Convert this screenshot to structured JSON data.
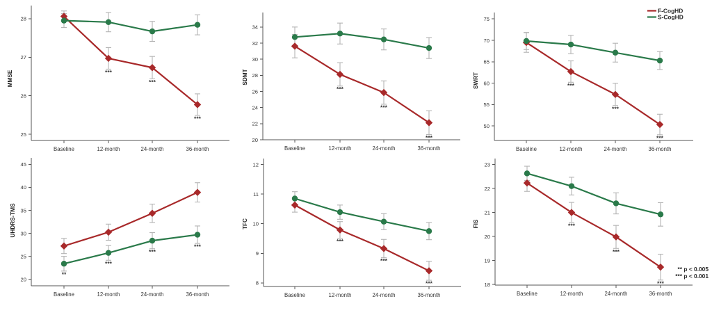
{
  "figure": {
    "colors": {
      "F-CogHD": "#a8292a",
      "S-CogHD": "#2a7a4a",
      "error_bar": "#b3b3b3",
      "axis": "#555555"
    },
    "legend": {
      "entries": [
        "F-CogHD",
        "S-CogHD"
      ],
      "placement": "top-right"
    },
    "footnotes": [
      "** p < 0.005",
      "*** p < 0.001"
    ]
  },
  "chart_data": [
    {
      "type": "line",
      "title": "",
      "xlabel": "",
      "ylabel": "MMSE",
      "categories": [
        "Baseline",
        "12-month",
        "24-month",
        "36-month"
      ],
      "yticks": [
        25,
        26,
        27,
        28
      ],
      "ylim": [
        24.84,
        28.34
      ],
      "grid": false,
      "series": [
        {
          "name": "F-CogHD",
          "color": "#a8292a",
          "values": [
            28.06,
            26.97,
            26.73,
            25.77
          ],
          "err": [
            0.14,
            0.28,
            0.29,
            0.28
          ]
        },
        {
          "name": "S-CogHD",
          "color": "#2a7a4a",
          "values": [
            27.95,
            27.91,
            27.67,
            27.84
          ],
          "err": [
            0.18,
            0.25,
            0.26,
            0.26
          ]
        }
      ],
      "significance": [
        {
          "series": "F-CogHD",
          "category": "12-month",
          "label": "***"
        },
        {
          "series": "F-CogHD",
          "category": "24-month",
          "label": "***"
        },
        {
          "series": "F-CogHD",
          "category": "36-month",
          "label": "***"
        }
      ]
    },
    {
      "type": "line",
      "title": "",
      "xlabel": "",
      "ylabel": "SDMT",
      "categories": [
        "Baseline",
        "12-month",
        "24-month",
        "36-month"
      ],
      "yticks": [
        20,
        22,
        24,
        26,
        28,
        30,
        32,
        34
      ],
      "ylim": [
        20,
        35.8
      ],
      "grid": false,
      "series": [
        {
          "name": "F-CogHD",
          "color": "#a8292a",
          "values": [
            31.62,
            28.12,
            25.86,
            22.12
          ],
          "err": [
            1.45,
            1.45,
            1.45,
            1.48
          ]
        },
        {
          "name": "S-CogHD",
          "color": "#2a7a4a",
          "values": [
            32.75,
            33.19,
            32.46,
            31.39
          ],
          "err": [
            1.25,
            1.3,
            1.3,
            1.3
          ]
        }
      ],
      "significance": [
        {
          "series": "F-CogHD",
          "category": "12-month",
          "label": "***"
        },
        {
          "series": "F-CogHD",
          "category": "24-month",
          "label": "***"
        },
        {
          "series": "F-CogHD",
          "category": "36-month",
          "label": "***"
        }
      ]
    },
    {
      "type": "line",
      "title": "",
      "xlabel": "",
      "ylabel": "SWRT",
      "categories": [
        "Baseline",
        "12-month",
        "24-month",
        "36-month"
      ],
      "yticks": [
        50,
        55,
        60,
        65,
        70,
        75
      ],
      "ylim": [
        46.6,
        76.5
      ],
      "grid": false,
      "legend": {
        "entries": [
          "F-CogHD",
          "S-CogHD"
        ],
        "placement": "top-right"
      },
      "series": [
        {
          "name": "F-CogHD",
          "color": "#a8292a",
          "values": [
            69.5,
            62.7,
            57.36,
            50.33
          ],
          "err": [
            2.3,
            2.5,
            2.6,
            2.4
          ]
        },
        {
          "name": "S-CogHD",
          "color": "#2a7a4a",
          "values": [
            69.84,
            69.02,
            67.12,
            65.27
          ],
          "err": [
            2.0,
            2.15,
            2.2,
            2.1
          ]
        }
      ],
      "significance": [
        {
          "series": "F-CogHD",
          "category": "12-month",
          "label": "***"
        },
        {
          "series": "F-CogHD",
          "category": "24-month",
          "label": "***"
        },
        {
          "series": "F-CogHD",
          "category": "36-month",
          "label": "***"
        }
      ]
    },
    {
      "type": "line",
      "title": "",
      "xlabel": "",
      "ylabel": "UHDRS-TMS",
      "categories": [
        "Baseline",
        "12-month",
        "24-month",
        "36-month"
      ],
      "yticks": [
        20,
        25,
        30,
        35,
        40,
        45
      ],
      "ylim": [
        18.6,
        46.4
      ],
      "grid": false,
      "series": [
        {
          "name": "F-CogHD",
          "color": "#a8292a",
          "values": [
            27.25,
            30.25,
            34.35,
            38.9
          ],
          "err": [
            1.65,
            1.75,
            2.0,
            2.1
          ]
        },
        {
          "name": "S-CogHD",
          "color": "#2a7a4a",
          "values": [
            23.4,
            25.75,
            28.4,
            29.7
          ],
          "err": [
            1.6,
            1.6,
            1.75,
            1.9
          ]
        }
      ],
      "significance": [
        {
          "series": "S-CogHD",
          "category": "Baseline",
          "label": "**"
        },
        {
          "series": "S-CogHD",
          "category": "12-month",
          "label": "***"
        },
        {
          "series": "S-CogHD",
          "category": "24-month",
          "label": "***"
        },
        {
          "series": "S-CogHD",
          "category": "36-month",
          "label": "***"
        }
      ]
    },
    {
      "type": "line",
      "title": "",
      "xlabel": "",
      "ylabel": "TFC",
      "categories": [
        "Baseline",
        "12-month",
        "24-month",
        "36-month"
      ],
      "yticks": [
        8,
        9,
        10,
        11,
        12
      ],
      "ylim": [
        7.88,
        12.2
      ],
      "grid": false,
      "series": [
        {
          "name": "F-CogHD",
          "color": "#a8292a",
          "values": [
            10.63,
            9.79,
            9.16,
            8.41
          ],
          "err": [
            0.24,
            0.28,
            0.31,
            0.32
          ]
        },
        {
          "name": "S-CogHD",
          "color": "#2a7a4a",
          "values": [
            10.85,
            10.39,
            10.07,
            9.75
          ],
          "err": [
            0.23,
            0.24,
            0.27,
            0.29
          ]
        }
      ],
      "significance": [
        {
          "series": "F-CogHD",
          "category": "12-month",
          "label": "***"
        },
        {
          "series": "F-CogHD",
          "category": "24-month",
          "label": "***"
        },
        {
          "series": "F-CogHD",
          "category": "36-month",
          "label": "***"
        }
      ]
    },
    {
      "type": "line",
      "title": "",
      "xlabel": "",
      "ylabel": "FIS",
      "categories": [
        "Baseline",
        "12-month",
        "24-month",
        "36-month"
      ],
      "yticks": [
        18,
        19,
        20,
        21,
        22,
        23
      ],
      "ylim": [
        17.97,
        23.25
      ],
      "grid": false,
      "series": [
        {
          "name": "F-CogHD",
          "color": "#a8292a",
          "values": [
            22.23,
            21.0,
            19.98,
            18.72
          ],
          "err": [
            0.35,
            0.42,
            0.48,
            0.54
          ]
        },
        {
          "name": "S-CogHD",
          "color": "#2a7a4a",
          "values": [
            22.63,
            22.1,
            21.38,
            20.92
          ],
          "err": [
            0.3,
            0.37,
            0.44,
            0.49
          ]
        }
      ],
      "significance": [
        {
          "series": "F-CogHD",
          "category": "12-month",
          "label": "***"
        },
        {
          "series": "F-CogHD",
          "category": "24-month",
          "label": "***"
        },
        {
          "series": "F-CogHD",
          "category": "36-month",
          "label": "***"
        }
      ],
      "annotations": [
        "** p < 0.005",
        "*** p < 0.001"
      ]
    }
  ]
}
